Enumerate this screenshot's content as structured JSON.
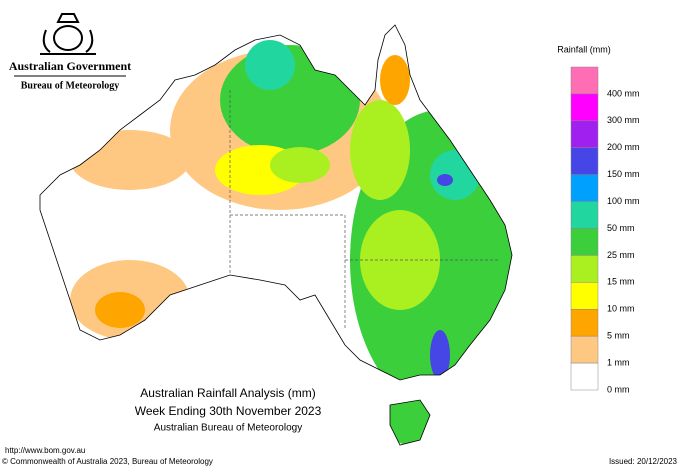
{
  "header": {
    "government": "Australian Government",
    "agency": "Bureau of Meteorology"
  },
  "legend": {
    "title": "Rainfall (mm)",
    "items": [
      {
        "color": "#ff6eb4",
        "label": "400 mm"
      },
      {
        "color": "#ff00ff",
        "label": "300 mm"
      },
      {
        "color": "#a020f0",
        "label": "200 mm"
      },
      {
        "color": "#4646e6",
        "label": "150 mm"
      },
      {
        "color": "#00a0ff",
        "label": "100 mm"
      },
      {
        "color": "#22d6a0",
        "label": "50 mm"
      },
      {
        "color": "#3ccf3c",
        "label": "25 mm"
      },
      {
        "color": "#aaf020",
        "label": "15 mm"
      },
      {
        "color": "#ffff00",
        "label": "10 mm"
      },
      {
        "color": "#ffa500",
        "label": "5 mm"
      },
      {
        "color": "#ffc882",
        "label": "1 mm"
      },
      {
        "color": "#ffffff",
        "label": "0 mm"
      }
    ]
  },
  "map_title": {
    "lines": [
      "Australian Rainfall Analysis (mm)",
      "Week Ending 30th November 2023",
      "Australian Bureau of Meteorology"
    ]
  },
  "footer": {
    "url": "http://www.bom.gov.au",
    "copyright": "© Commonwealth of Australia 2023, Bureau of Meteorology",
    "issued": "Issued: 20/12/2023"
  }
}
